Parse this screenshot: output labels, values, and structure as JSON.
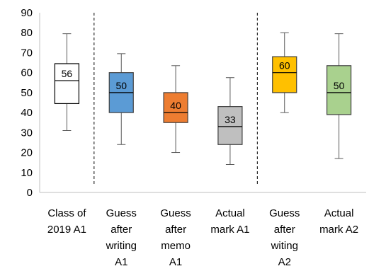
{
  "chart_data": {
    "type": "boxplot",
    "ylim": [
      0,
      90
    ],
    "yticks": [
      0,
      10,
      20,
      30,
      40,
      50,
      60,
      70,
      80,
      90
    ],
    "grid": false,
    "dividers_after_category_index": [
      0,
      3
    ],
    "categories": [
      {
        "label_lines": [
          "Class of",
          "2019 A1"
        ],
        "min": 31,
        "q1": 44.5,
        "median": 56,
        "q3": 64.5,
        "max": 79.5,
        "label": "56",
        "fill": "#ffffff"
      },
      {
        "label_lines": [
          "Guess",
          "after",
          "writing",
          "A1"
        ],
        "min": 24,
        "q1": 40,
        "median": 50,
        "q3": 60,
        "max": 69.5,
        "label": "50",
        "fill": "#5b9bd5"
      },
      {
        "label_lines": [
          "Guess",
          "after",
          "memo",
          "A1"
        ],
        "min": 20,
        "q1": 35,
        "median": 40,
        "q3": 50,
        "max": 63.5,
        "label": "40",
        "fill": "#ed7d31"
      },
      {
        "label_lines": [
          "Actual",
          "mark A1"
        ],
        "min": 14,
        "q1": 24,
        "median": 33,
        "q3": 43,
        "max": 57.5,
        "label": "33",
        "fill": "#bfbfbf"
      },
      {
        "label_lines": [
          "Guess",
          "after",
          "witing",
          "A2"
        ],
        "min": 40,
        "q1": 50,
        "median": 60,
        "q3": 68,
        "max": 80,
        "label": "60",
        "fill": "#ffc000"
      },
      {
        "label_lines": [
          "Actual",
          "mark A2"
        ],
        "min": 17,
        "q1": 39,
        "median": 50,
        "q3": 63.5,
        "max": 79.5,
        "label": "50",
        "fill": "#a9d18e"
      }
    ]
  }
}
